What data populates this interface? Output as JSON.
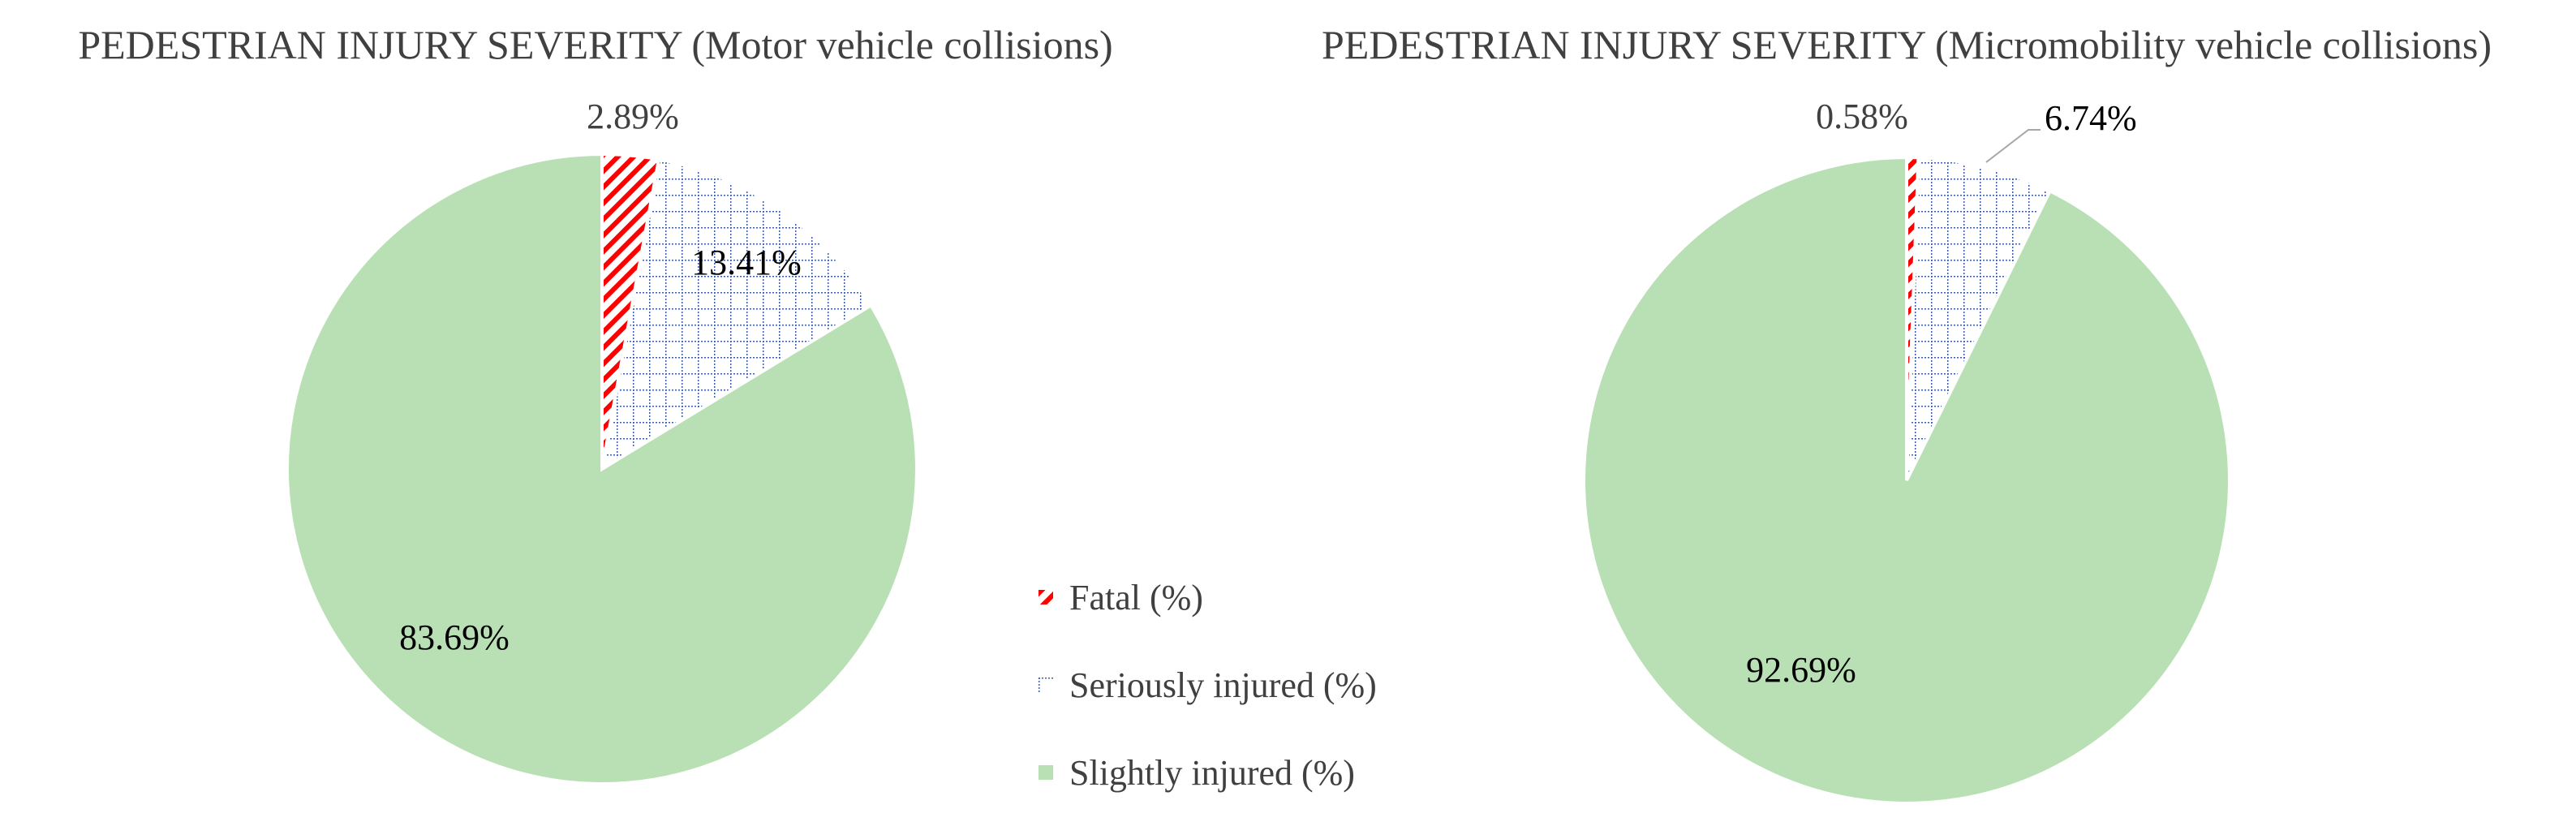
{
  "legend": [
    {
      "label": "Fatal (%)",
      "pattern": "fatal"
    },
    {
      "label": "Seriously injured (%)",
      "pattern": "serious"
    },
    {
      "label": "Slightly injured (%)",
      "pattern": "slight"
    }
  ],
  "colors": {
    "fatal": "#ff0000",
    "serious": "#3b5ca8",
    "slight": "#b9e0b4",
    "text": "#404040"
  },
  "chart_data": [
    {
      "type": "pie",
      "title": "PEDESTRIAN INJURY SEVERITY (Motor vehicle collisions)",
      "categories": [
        "Fatal (%)",
        "Seriously injured (%)",
        "Slightly injured (%)"
      ],
      "values": [
        2.89,
        13.41,
        83.69
      ],
      "labels": [
        "2.89%",
        "13.41%",
        "83.69%"
      ],
      "legend_position": "between charts"
    },
    {
      "type": "pie",
      "title": "PEDESTRIAN INJURY SEVERITY (Micromobility vehicle collisions)",
      "categories": [
        "Fatal (%)",
        "Seriously injured (%)",
        "Slightly injured (%)"
      ],
      "values": [
        0.58,
        6.74,
        92.69
      ],
      "labels": [
        "0.58%",
        "6.74%",
        "92.69%"
      ],
      "legend_position": "between charts"
    }
  ]
}
